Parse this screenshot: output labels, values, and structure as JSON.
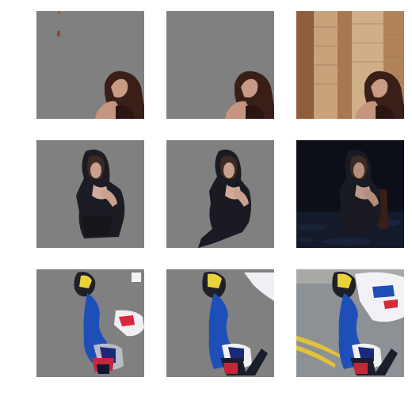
{
  "figure": {
    "background": "#ffffff",
    "mask_background": "#808080",
    "rows": [
      {
        "subject": "woman-looking-up",
        "tiles": [
          {
            "kind": "masked-prediction",
            "icon": "masked-cutout"
          },
          {
            "kind": "masked-ground-truth",
            "icon": "masked-cutout"
          },
          {
            "kind": "original-photo",
            "icon": "photo"
          }
        ]
      },
      {
        "subject": "woman-seated",
        "tiles": [
          {
            "kind": "masked-prediction",
            "icon": "masked-cutout"
          },
          {
            "kind": "masked-ground-truth",
            "icon": "masked-cutout"
          },
          {
            "kind": "original-photo",
            "icon": "photo"
          }
        ]
      },
      {
        "subject": "motorcycle-racer",
        "tiles": [
          {
            "kind": "masked-prediction",
            "icon": "masked-cutout"
          },
          {
            "kind": "masked-ground-truth",
            "icon": "masked-cutout"
          },
          {
            "kind": "original-photo",
            "icon": "photo"
          }
        ]
      }
    ]
  }
}
